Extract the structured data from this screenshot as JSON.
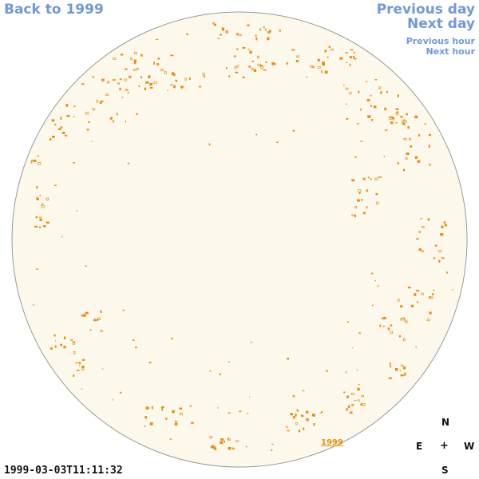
{
  "nav": {
    "back_label": "Back to 1999",
    "prev_day_label": "Previous day",
    "next_day_label": "Next day",
    "prev_hour_label": "Previous hour",
    "next_hour_label": "Next hour"
  },
  "disk": {
    "fill_color": "#fdf8ec",
    "border_color": "#999999",
    "feature_color": "#e8900f",
    "year_tag": "1999"
  },
  "timestamp": "1999-03-03T11:11:32",
  "compass": {
    "north": "N",
    "east": "E",
    "center": "+",
    "west": "W",
    "south": "S"
  }
}
